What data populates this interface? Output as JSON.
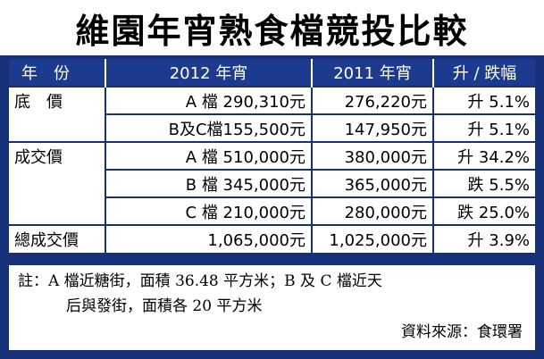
{
  "title": "維園年宵熟食檔競投比較",
  "table": {
    "headers": [
      "年　份",
      "2012 年宵",
      "2011 年宵",
      "升 / 跌幅"
    ],
    "rows": [
      {
        "label": "底　價",
        "v2012": "A 檔 290,310元",
        "v2011": "276,220元",
        "change": "升 5.1%"
      },
      {
        "label": "",
        "v2012": "B及C檔155,500元",
        "v2011": "147,950元",
        "change": "升 5.1%"
      },
      {
        "label": "成交價",
        "v2012": "A 檔 510,000元",
        "v2011": "380,000元",
        "change": "升 34.2%"
      },
      {
        "label": "",
        "v2012": "B 檔 345,000元",
        "v2011": "365,000元",
        "change": "跌 5.5%"
      },
      {
        "label": "",
        "v2012": "C 檔 210,000元",
        "v2011": "280,000元",
        "change": "跌 25.0%"
      },
      {
        "label": "總成交價",
        "v2012": "1,065,000元",
        "v2011": "1,025,000元",
        "change": "升 3.9%"
      }
    ]
  },
  "notes": {
    "line1": "註：A 檔近糖街，面積 36.48 平方米；B 及 C 檔近天",
    "line2": "后與發街，面積各 20 平方米",
    "source": "資料來源：食環署"
  }
}
